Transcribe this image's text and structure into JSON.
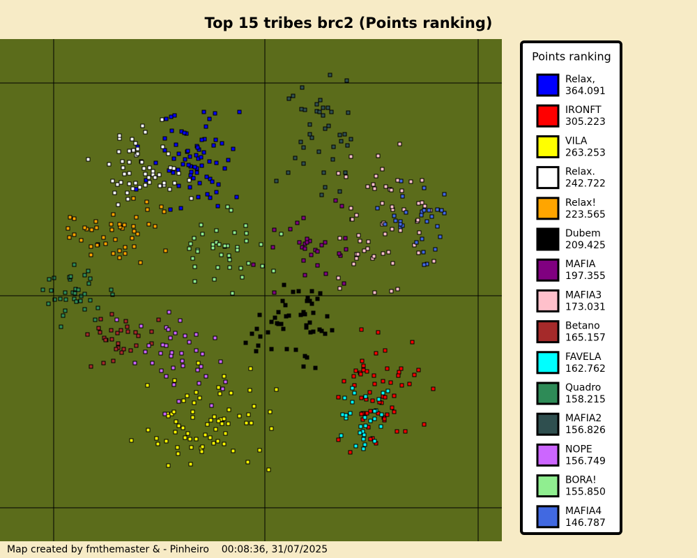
{
  "title": "Top 15 tribes brc2 (Points ranking)",
  "legend": {
    "title": "Points ranking",
    "entries": [
      {
        "name": "Relax,",
        "points": "364.091",
        "color": "#0000ff"
      },
      {
        "name": "IRONFT",
        "points": "305.223",
        "color": "#ff0000"
      },
      {
        "name": "VILA",
        "points": "263.253",
        "color": "#ffff00"
      },
      {
        "name": "Relax.",
        "points": "242.722",
        "color": "#ffffff"
      },
      {
        "name": "Relax!",
        "points": "223.565",
        "color": "#ffa500"
      },
      {
        "name": "Dubem",
        "points": "209.425",
        "color": "#000000"
      },
      {
        "name": "MAFIA",
        "points": "197.355",
        "color": "#800080"
      },
      {
        "name": "MAFIA3",
        "points": "173.031",
        "color": "#ffc0cb"
      },
      {
        "name": "Betano",
        "points": "165.157",
        "color": "#a52a2a"
      },
      {
        "name": "FAVELA",
        "points": "162.762",
        "color": "#00ffff"
      },
      {
        "name": "Quadro",
        "points": "158.215",
        "color": "#2e8b57"
      },
      {
        "name": "MAFIA2",
        "points": "156.826",
        "color": "#2f4f4f"
      },
      {
        "name": "NOPE",
        "points": "156.749",
        "color": "#cc66ff"
      },
      {
        "name": "BORA!",
        "points": "155.850",
        "color": "#90ee90"
      },
      {
        "name": "MAFIA4",
        "points": "146.787",
        "color": "#4169e1"
      }
    ]
  },
  "footer": "Map created by fmthemaster & - Pinheiro    00:08:36, 31/07/2025"
}
